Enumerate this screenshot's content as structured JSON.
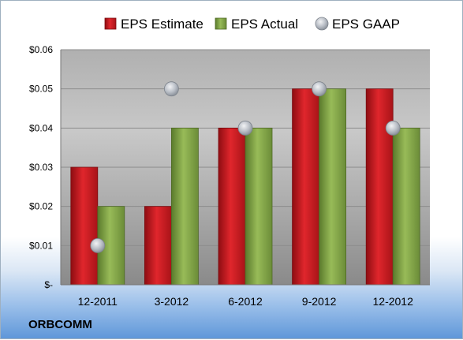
{
  "chart_data": {
    "type": "bar",
    "categories": [
      "12-2011",
      "3-2012",
      "6-2012",
      "9-2012",
      "12-2012"
    ],
    "series": [
      {
        "name": "EPS Estimate",
        "values": [
          0.03,
          0.02,
          0.04,
          0.05,
          0.05
        ],
        "color": "#c8161d",
        "kind": "bar"
      },
      {
        "name": "EPS Actual",
        "values": [
          0.02,
          0.04,
          0.04,
          0.05,
          0.04
        ],
        "color": "#7fa043",
        "kind": "bar"
      },
      {
        "name": "EPS GAAP",
        "values": [
          0.01,
          0.05,
          0.04,
          0.05,
          0.04
        ],
        "color": "#b7bcc4",
        "kind": "marker"
      }
    ],
    "y_ticks": [
      "$-",
      "$0.01",
      "$0.02",
      "$0.03",
      "$0.04",
      "$0.05",
      "$0.06"
    ],
    "ylim": [
      0,
      0.06
    ],
    "grid": true,
    "legend_position": "top"
  },
  "branding": "ORBCOMM"
}
